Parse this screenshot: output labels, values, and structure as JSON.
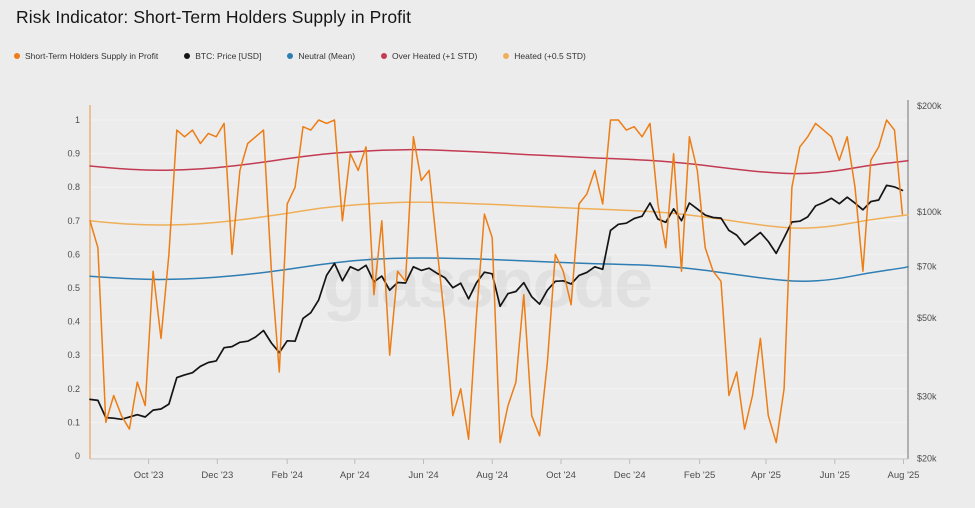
{
  "page": {
    "title": "Risk Indicator: Short-Term Holders Supply in Profit",
    "watermark": "glassnode",
    "background": "#ececec"
  },
  "legend": {
    "items": [
      {
        "label": "Short-Term Holders Supply in Profit",
        "color": "#ED7D15"
      },
      {
        "label": "BTC: Price [USD]",
        "color": "#141414"
      },
      {
        "label": "Neutral (Mean)",
        "color": "#2E7EB3"
      },
      {
        "label": "Over Heated (+1 STD)",
        "color": "#C23B52"
      },
      {
        "label": "Heated (+0.5 STD)",
        "color": "#EFAF58"
      }
    ]
  },
  "chart_data": {
    "type": "line",
    "title": "Risk Indicator: Short-Term Holders Supply in Profit",
    "x_range": [
      "2023-08-10",
      "2025-08-05"
    ],
    "x_ticks": [
      {
        "label": "Oct '23",
        "date": "2023-10-01"
      },
      {
        "label": "Dec '23",
        "date": "2023-12-01"
      },
      {
        "label": "Feb '24",
        "date": "2024-02-01"
      },
      {
        "label": "Apr '24",
        "date": "2024-04-01"
      },
      {
        "label": "Jun '24",
        "date": "2024-06-01"
      },
      {
        "label": "Aug '24",
        "date": "2024-08-01"
      },
      {
        "label": "Oct '24",
        "date": "2024-10-01"
      },
      {
        "label": "Dec '24",
        "date": "2024-12-01"
      },
      {
        "label": "Feb '25",
        "date": "2025-02-01"
      },
      {
        "label": "Apr '25",
        "date": "2025-04-01"
      },
      {
        "label": "Jun '25",
        "date": "2025-06-01"
      },
      {
        "label": "Aug '25",
        "date": "2025-08-01"
      }
    ],
    "left_axis": {
      "range": [
        0,
        1
      ],
      "ticks": [
        0,
        0.1,
        0.2,
        0.3,
        0.4,
        0.5,
        0.6,
        0.7,
        0.8,
        0.9,
        1
      ],
      "axis_line_color": "#ED7D15",
      "label_color": "#4d4d4d",
      "grid": true
    },
    "right_axis": {
      "scale": "log",
      "range": [
        20000,
        200000
      ],
      "ticks": [
        {
          "label": "$200k",
          "value": 200000
        },
        {
          "label": "$100k",
          "value": 100000
        },
        {
          "label": "$70k",
          "value": 70000
        },
        {
          "label": "$50k",
          "value": 50000
        },
        {
          "label": "$30k",
          "value": 30000
        },
        {
          "label": "$20k",
          "value": 20000
        }
      ],
      "label_color": "#4d4d4d"
    },
    "legend_position": "top-left",
    "series": [
      {
        "name": "Over Heated (+1 STD)",
        "axis": "left",
        "color": "#C23B52",
        "width": 1.5,
        "smooth": true,
        "x": [
          "2023-08-10",
          "2023-09-01",
          "2023-10-01",
          "2023-11-01",
          "2023-12-01",
          "2024-01-01",
          "2024-02-01",
          "2024-03-01",
          "2024-04-01",
          "2024-05-01",
          "2024-06-01",
          "2024-07-01",
          "2024-08-01",
          "2024-09-01",
          "2024-10-01",
          "2024-11-01",
          "2024-12-01",
          "2025-01-01",
          "2025-02-01",
          "2025-03-01",
          "2025-04-01",
          "2025-05-01",
          "2025-06-01",
          "2025-07-01",
          "2025-08-01",
          "2025-08-05"
        ],
        "values": [
          0.863,
          0.856,
          0.85,
          0.851,
          0.858,
          0.87,
          0.885,
          0.898,
          0.906,
          0.911,
          0.912,
          0.908,
          0.903,
          0.897,
          0.892,
          0.887,
          0.883,
          0.877,
          0.867,
          0.855,
          0.844,
          0.839,
          0.847,
          0.865,
          0.877,
          0.879
        ]
      },
      {
        "name": "Heated (+0.5 STD)",
        "axis": "left",
        "color": "#EFAF58",
        "width": 1.5,
        "smooth": true,
        "x": [
          "2023-08-10",
          "2023-09-01",
          "2023-10-01",
          "2023-11-01",
          "2023-12-01",
          "2024-01-01",
          "2024-02-01",
          "2024-03-01",
          "2024-04-01",
          "2024-05-01",
          "2024-06-01",
          "2024-07-01",
          "2024-08-01",
          "2024-09-01",
          "2024-10-01",
          "2024-11-01",
          "2024-12-01",
          "2025-01-01",
          "2025-02-01",
          "2025-03-01",
          "2025-04-01",
          "2025-05-01",
          "2025-06-01",
          "2025-07-01",
          "2025-08-01",
          "2025-08-05"
        ],
        "values": [
          0.7,
          0.692,
          0.687,
          0.688,
          0.695,
          0.707,
          0.722,
          0.738,
          0.748,
          0.754,
          0.756,
          0.753,
          0.749,
          0.744,
          0.739,
          0.735,
          0.731,
          0.725,
          0.714,
          0.7,
          0.685,
          0.676,
          0.684,
          0.703,
          0.716,
          0.718
        ]
      },
      {
        "name": "Neutral (Mean)",
        "axis": "left",
        "color": "#2E7EB3",
        "width": 1.5,
        "smooth": true,
        "x": [
          "2023-08-10",
          "2023-09-01",
          "2023-10-01",
          "2023-11-01",
          "2023-12-01",
          "2024-01-01",
          "2024-02-01",
          "2024-03-01",
          "2024-04-01",
          "2024-05-01",
          "2024-06-01",
          "2024-07-01",
          "2024-08-01",
          "2024-09-01",
          "2024-10-01",
          "2024-11-01",
          "2024-12-01",
          "2025-01-01",
          "2025-02-01",
          "2025-03-01",
          "2025-04-01",
          "2025-05-01",
          "2025-06-01",
          "2025-07-01",
          "2025-08-01",
          "2025-08-05"
        ],
        "values": [
          0.535,
          0.53,
          0.525,
          0.526,
          0.532,
          0.542,
          0.555,
          0.57,
          0.582,
          0.588,
          0.59,
          0.588,
          0.585,
          0.58,
          0.576,
          0.572,
          0.57,
          0.565,
          0.555,
          0.542,
          0.528,
          0.518,
          0.525,
          0.545,
          0.56,
          0.563
        ]
      },
      {
        "name": "BTC: Price [USD]",
        "axis": "right",
        "color": "#141414",
        "width": 1.7,
        "smooth": false,
        "x_start": "2023-08-10",
        "x_step_days": 7,
        "values": [
          29400,
          29200,
          26100,
          26000,
          25800,
          26200,
          26600,
          26200,
          27400,
          27600,
          28500,
          33900,
          34500,
          35000,
          36500,
          37400,
          37800,
          41200,
          41500,
          42700,
          43000,
          44200,
          46100,
          42500,
          39900,
          43100,
          43000,
          49900,
          51800,
          56300,
          66100,
          71500,
          63800,
          69900,
          68300,
          70600,
          63400,
          65800,
          60000,
          63100,
          62900,
          69900,
          68300,
          69300,
          67000,
          65100,
          61000,
          62800,
          56700,
          63000,
          67500,
          66800,
          54000,
          58700,
          59500,
          63000,
          57500,
          54800,
          60000,
          63600,
          63800,
          62500,
          66100,
          67400,
          69900,
          68800,
          88700,
          92300,
          93000,
          95900,
          97300,
          106100,
          95500,
          93500,
          102100,
          94500,
          106100,
          102100,
          98000,
          96500,
          96100,
          88700,
          86000,
          80700,
          84000,
          87500,
          82500,
          76300,
          84500,
          93700,
          94200,
          96900,
          104100,
          106400,
          109400,
          105600,
          110200,
          106000,
          101500,
          107100,
          108200,
          119100,
          117900,
          115200
        ]
      },
      {
        "name": "Short-Term Holders Supply in Profit",
        "axis": "left",
        "color": "#ED7D15",
        "width": 1.5,
        "smooth": false,
        "x_start": "2023-08-10",
        "x_step_days": 7,
        "values": [
          0.7,
          0.62,
          0.1,
          0.18,
          0.12,
          0.08,
          0.22,
          0.15,
          0.55,
          0.35,
          0.6,
          0.97,
          0.95,
          0.97,
          0.93,
          0.96,
          0.95,
          0.99,
          0.6,
          0.85,
          0.93,
          0.95,
          0.97,
          0.55,
          0.25,
          0.75,
          0.8,
          0.98,
          0.97,
          1.0,
          0.99,
          1.0,
          0.7,
          0.9,
          0.85,
          0.92,
          0.48,
          0.7,
          0.3,
          0.55,
          0.52,
          0.95,
          0.82,
          0.85,
          0.62,
          0.4,
          0.12,
          0.2,
          0.05,
          0.42,
          0.72,
          0.65,
          0.04,
          0.15,
          0.22,
          0.48,
          0.12,
          0.06,
          0.28,
          0.6,
          0.55,
          0.45,
          0.75,
          0.78,
          0.85,
          0.75,
          1.0,
          1.0,
          0.97,
          0.98,
          0.95,
          0.99,
          0.75,
          0.62,
          0.9,
          0.55,
          0.95,
          0.85,
          0.62,
          0.55,
          0.52,
          0.18,
          0.25,
          0.08,
          0.18,
          0.35,
          0.12,
          0.04,
          0.2,
          0.8,
          0.92,
          0.95,
          0.99,
          0.97,
          0.95,
          0.88,
          0.95,
          0.8,
          0.55,
          0.88,
          0.92,
          1.0,
          0.97,
          0.72
        ]
      }
    ]
  }
}
